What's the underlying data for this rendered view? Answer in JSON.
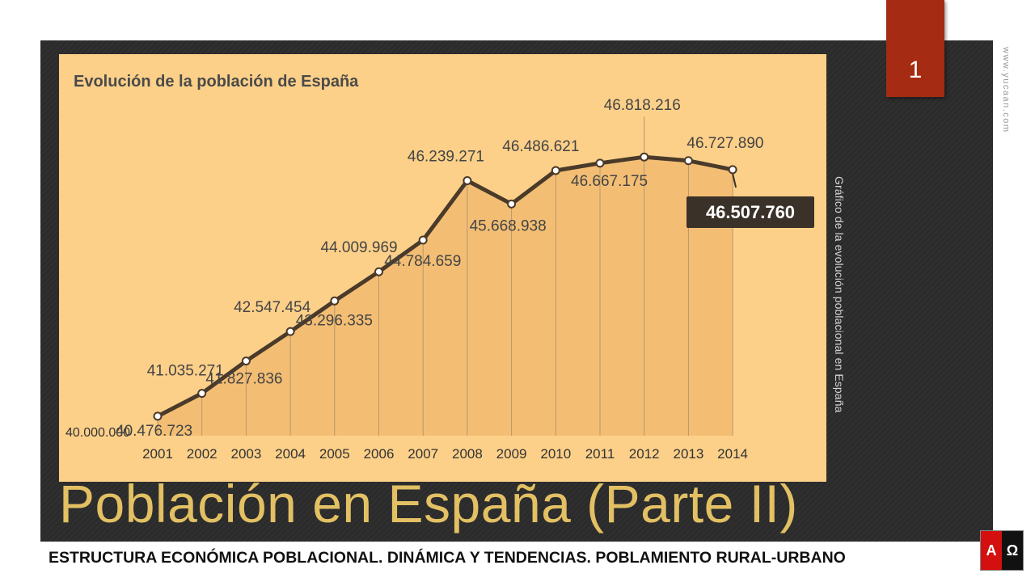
{
  "slide": {
    "number": "1",
    "title": "Población en España (Parte II)",
    "subtitle": "ESTRUCTURA ECONÓMICA POBLACIONAL. DINÁMICA Y TENDENCIAS. POBLAMIENTO RURAL-URBANO",
    "caption": "Gráfico de la evolución poblacional en España",
    "watermark": "www.yucaan.com",
    "logo": {
      "left": "A",
      "right": "Ω",
      "left_color": "#d40f0f",
      "right_color": "#111111"
    }
  },
  "colors": {
    "slide_background": "#2b2b2b",
    "accent_red": "#a52b12",
    "title_gold": "#e2c063",
    "chart_background": "#fcd089",
    "chart_area_fill": "#f3be74",
    "chart_line": "#4a3a2a"
  },
  "chart_data": {
    "type": "area",
    "title": "Evolución de la población de España",
    "x": [
      "2001",
      "2002",
      "2003",
      "2004",
      "2005",
      "2006",
      "2007",
      "2008",
      "2009",
      "2010",
      "2011",
      "2012",
      "2013",
      "2014"
    ],
    "values": [
      40476723,
      41035271,
      41827836,
      42547454,
      43296335,
      44009969,
      44784659,
      46239271,
      45668938,
      46486621,
      46667175,
      46818216,
      46727890,
      46507760
    ],
    "value_labels": [
      "40.476.723",
      "41.035.271",
      "41.827.836",
      "42.547.454",
      "43.296.335",
      "44.009.969",
      "44.784.659",
      "46.239.271",
      "45.668.938",
      "46.486.621",
      "46.667.175",
      "46.818.216",
      "46.727.890",
      "46.507.760"
    ],
    "baseline_label": "40.000.000",
    "highlighted_label": "46.507.760",
    "grid": false,
    "legend": "none"
  }
}
